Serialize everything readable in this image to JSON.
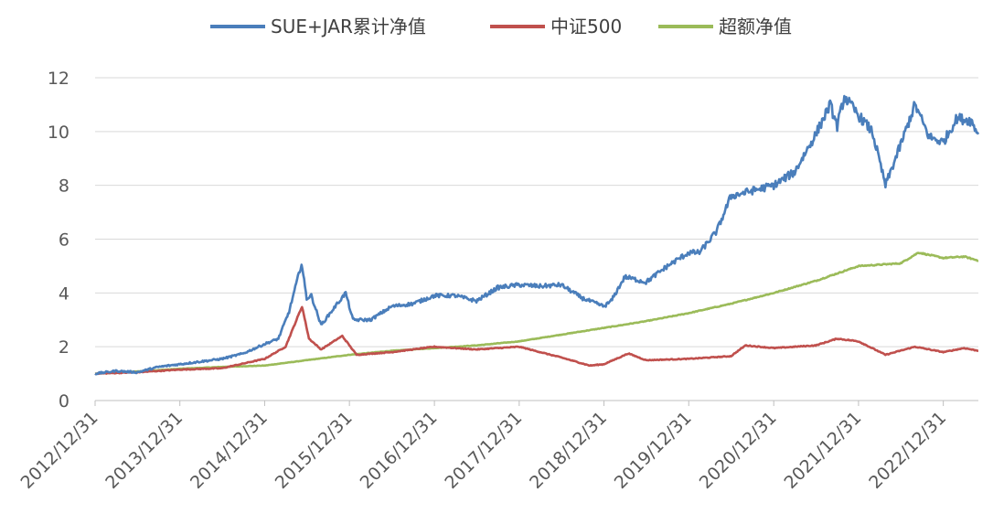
{
  "chart_data": {
    "type": "line",
    "title": "",
    "xlabel": "",
    "ylabel": "",
    "ylim": [
      0,
      12
    ],
    "yticks": [
      0,
      2,
      4,
      6,
      8,
      10,
      12
    ],
    "xlim": [
      "2012-12-31",
      "2023-05-31"
    ],
    "xtick_labels": [
      "2012/12/31",
      "2013/12/31",
      "2014/12/31",
      "2015/12/31",
      "2016/12/31",
      "2017/12/31",
      "2018/12/31",
      "2019/12/31",
      "2020/12/31",
      "2021/12/31",
      "2022/12/31"
    ],
    "grid": "horizontal",
    "legend_position": "top-center",
    "series": [
      {
        "name": "SUE+JAR累计净值",
        "color": "#4a7ebb",
        "points": [
          [
            "2012-12-31",
            1.0
          ],
          [
            "2013-03-31",
            1.1
          ],
          [
            "2013-06-30",
            1.05
          ],
          [
            "2013-09-30",
            1.25
          ],
          [
            "2013-12-31",
            1.35
          ],
          [
            "2014-03-31",
            1.45
          ],
          [
            "2014-06-30",
            1.55
          ],
          [
            "2014-09-30",
            1.75
          ],
          [
            "2014-12-31",
            2.1
          ],
          [
            "2015-02-28",
            2.3
          ],
          [
            "2015-04-15",
            3.3
          ],
          [
            "2015-06-08",
            5.1
          ],
          [
            "2015-06-30",
            3.8
          ],
          [
            "2015-07-20",
            3.9
          ],
          [
            "2015-08-31",
            2.8
          ],
          [
            "2015-10-31",
            3.5
          ],
          [
            "2015-12-15",
            4.0
          ],
          [
            "2016-01-15",
            3.0
          ],
          [
            "2016-03-31",
            3.0
          ],
          [
            "2016-06-30",
            3.5
          ],
          [
            "2016-09-30",
            3.6
          ],
          [
            "2016-12-31",
            3.9
          ],
          [
            "2017-03-31",
            3.9
          ],
          [
            "2017-06-30",
            3.7
          ],
          [
            "2017-09-30",
            4.2
          ],
          [
            "2017-12-31",
            4.3
          ],
          [
            "2018-03-31",
            4.25
          ],
          [
            "2018-06-30",
            4.3
          ],
          [
            "2018-09-30",
            3.8
          ],
          [
            "2018-12-31",
            3.5
          ],
          [
            "2019-01-31",
            3.7
          ],
          [
            "2019-03-31",
            4.6
          ],
          [
            "2019-06-30",
            4.4
          ],
          [
            "2019-09-30",
            5.0
          ],
          [
            "2019-12-31",
            5.5
          ],
          [
            "2020-02-15",
            5.5
          ],
          [
            "2020-04-30",
            6.3
          ],
          [
            "2020-06-30",
            7.6
          ],
          [
            "2020-09-30",
            7.8
          ],
          [
            "2020-12-31",
            8.0
          ],
          [
            "2021-03-31",
            8.5
          ],
          [
            "2021-06-30",
            9.9
          ],
          [
            "2021-08-31",
            11.0
          ],
          [
            "2021-09-30",
            10.2
          ],
          [
            "2021-10-31",
            11.3
          ],
          [
            "2021-12-31",
            10.6
          ],
          [
            "2022-02-28",
            10.0
          ],
          [
            "2022-04-26",
            8.0
          ],
          [
            "2022-06-30",
            9.5
          ],
          [
            "2022-08-31",
            11.0
          ],
          [
            "2022-10-31",
            9.8
          ],
          [
            "2022-12-31",
            9.6
          ],
          [
            "2023-02-28",
            10.5
          ],
          [
            "2023-04-30",
            10.4
          ],
          [
            "2023-05-31",
            9.9
          ]
        ]
      },
      {
        "name": "中证500",
        "color": "#c0504d",
        "points": [
          [
            "2012-12-31",
            1.0
          ],
          [
            "2013-06-30",
            1.05
          ],
          [
            "2013-12-31",
            1.15
          ],
          [
            "2014-06-30",
            1.2
          ],
          [
            "2014-12-31",
            1.55
          ],
          [
            "2015-03-31",
            2.0
          ],
          [
            "2015-06-10",
            3.5
          ],
          [
            "2015-07-10",
            2.3
          ],
          [
            "2015-08-31",
            1.9
          ],
          [
            "2015-11-30",
            2.4
          ],
          [
            "2016-01-31",
            1.7
          ],
          [
            "2016-06-30",
            1.8
          ],
          [
            "2016-12-31",
            2.0
          ],
          [
            "2017-06-30",
            1.9
          ],
          [
            "2017-12-31",
            2.0
          ],
          [
            "2018-06-30",
            1.6
          ],
          [
            "2018-10-31",
            1.3
          ],
          [
            "2018-12-31",
            1.35
          ],
          [
            "2019-04-15",
            1.75
          ],
          [
            "2019-06-30",
            1.5
          ],
          [
            "2019-12-31",
            1.55
          ],
          [
            "2020-06-30",
            1.65
          ],
          [
            "2020-08-31",
            2.05
          ],
          [
            "2020-12-31",
            1.95
          ],
          [
            "2021-06-30",
            2.05
          ],
          [
            "2021-09-30",
            2.3
          ],
          [
            "2021-12-31",
            2.2
          ],
          [
            "2022-04-26",
            1.7
          ],
          [
            "2022-08-31",
            2.0
          ],
          [
            "2022-12-31",
            1.8
          ],
          [
            "2023-03-31",
            1.95
          ],
          [
            "2023-05-31",
            1.85
          ]
        ]
      },
      {
        "name": "超额净值",
        "color": "#9bbb59",
        "points": [
          [
            "2012-12-31",
            1.0
          ],
          [
            "2013-06-30",
            1.08
          ],
          [
            "2013-12-31",
            1.18
          ],
          [
            "2014-06-30",
            1.25
          ],
          [
            "2014-12-31",
            1.3
          ],
          [
            "2015-06-30",
            1.5
          ],
          [
            "2015-12-31",
            1.7
          ],
          [
            "2016-06-30",
            1.85
          ],
          [
            "2016-12-31",
            1.95
          ],
          [
            "2017-06-30",
            2.05
          ],
          [
            "2017-12-31",
            2.2
          ],
          [
            "2018-06-30",
            2.45
          ],
          [
            "2018-12-31",
            2.7
          ],
          [
            "2019-06-30",
            2.95
          ],
          [
            "2019-12-31",
            3.25
          ],
          [
            "2020-06-30",
            3.6
          ],
          [
            "2020-12-31",
            4.0
          ],
          [
            "2021-06-30",
            4.45
          ],
          [
            "2021-12-31",
            5.0
          ],
          [
            "2022-06-30",
            5.1
          ],
          [
            "2022-09-15",
            5.5
          ],
          [
            "2022-12-31",
            5.3
          ],
          [
            "2023-03-31",
            5.35
          ],
          [
            "2023-05-31",
            5.2
          ]
        ]
      }
    ]
  }
}
